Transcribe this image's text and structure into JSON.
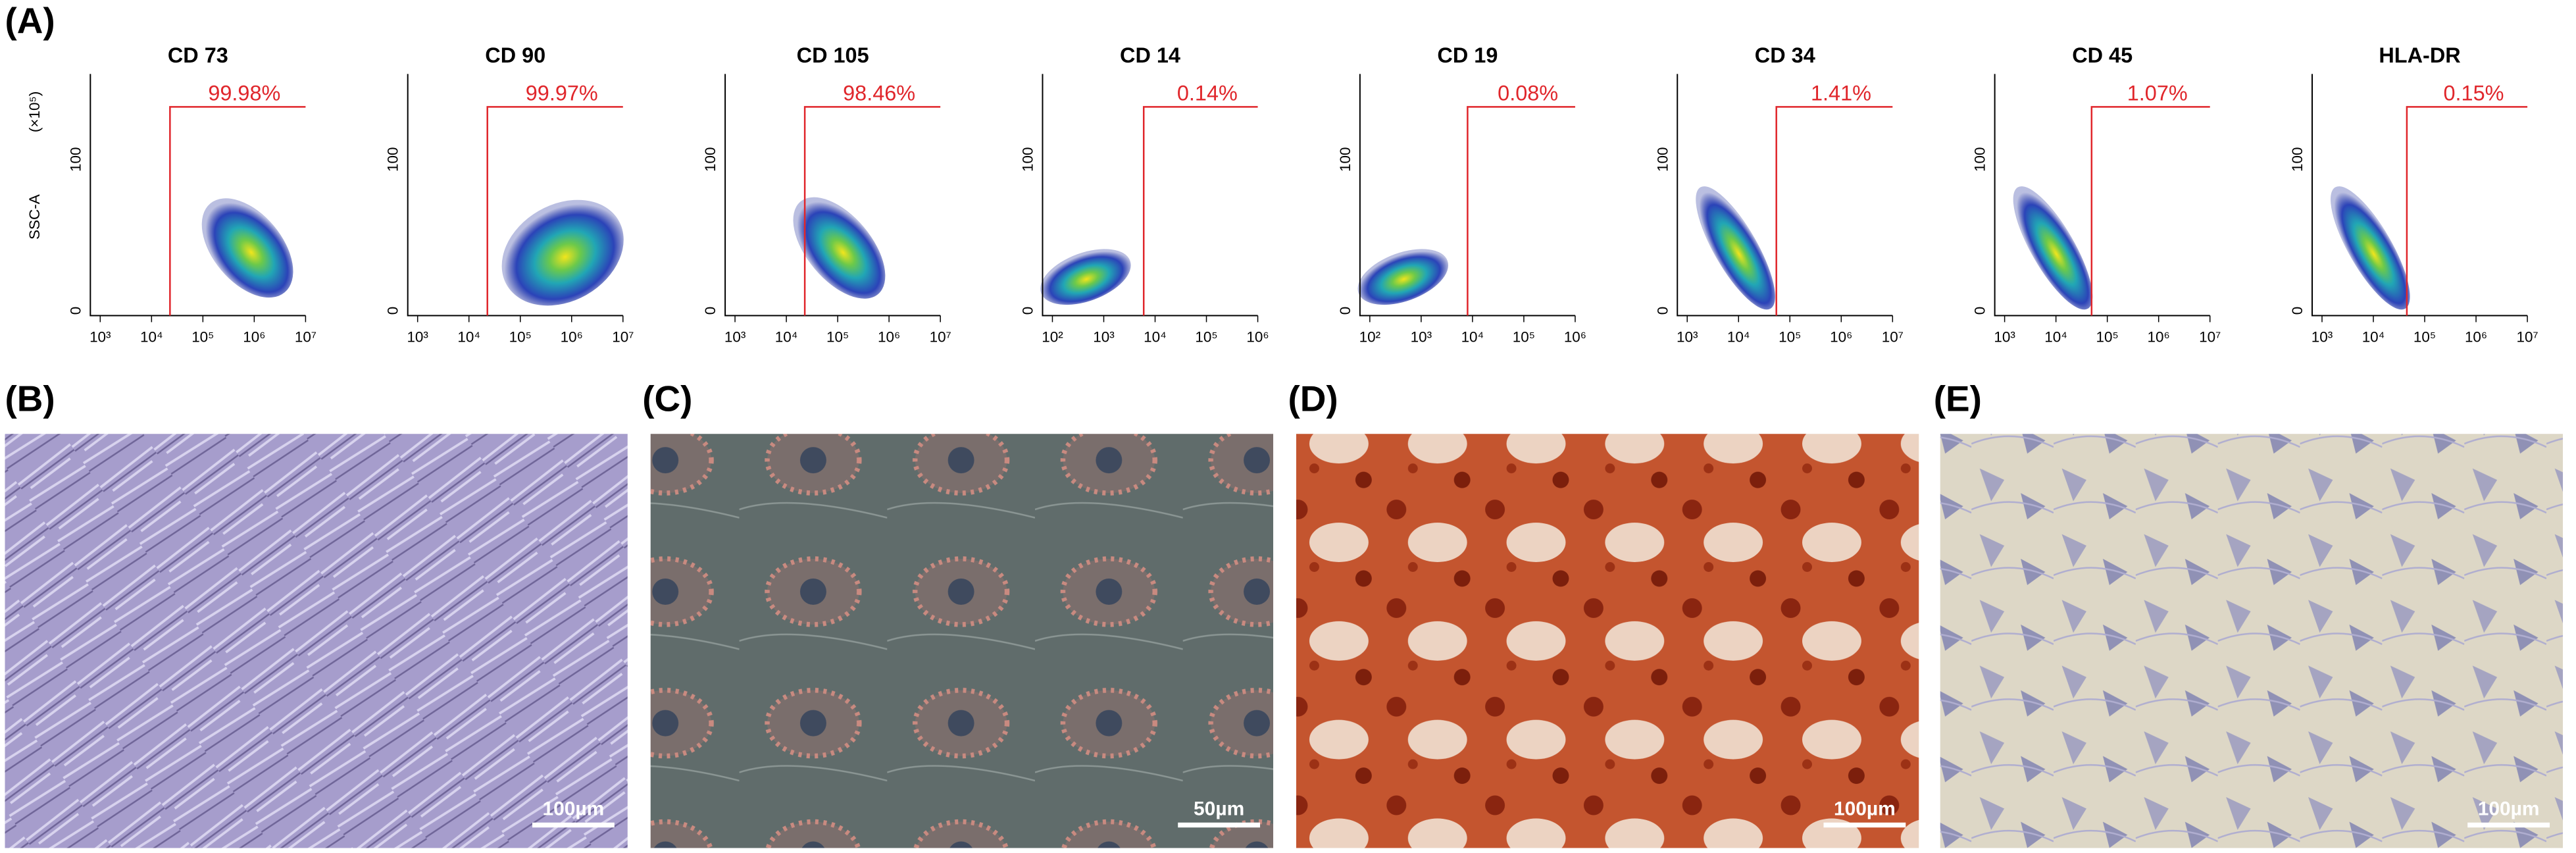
{
  "panels": {
    "A": {
      "label": "(A)",
      "y_axis_label": "SSC-A",
      "y_axis_unit": "(×10⁵)",
      "plots": [
        {
          "title": "CD 73",
          "gate_percent": "99.98%",
          "yticks": [
            "0",
            "100"
          ],
          "xticks": [
            "10³",
            "10⁴",
            "10⁵",
            "10⁶",
            "10⁷"
          ]
        },
        {
          "title": "CD 90",
          "gate_percent": "99.97%",
          "yticks": [
            "0",
            "100"
          ],
          "xticks": [
            "10³",
            "10⁴",
            "10⁵",
            "10⁶",
            "10⁷"
          ]
        },
        {
          "title": "CD 105",
          "gate_percent": "98.46%",
          "yticks": [
            "0",
            "100"
          ],
          "xticks": [
            "10³",
            "10⁴",
            "10⁵",
            "10⁶",
            "10⁷"
          ]
        },
        {
          "title": "CD 14",
          "gate_percent": "0.14%",
          "yticks": [
            "0",
            "100"
          ],
          "xticks": [
            "10²",
            "10³",
            "10⁴",
            "10⁵",
            "10⁶"
          ]
        },
        {
          "title": "CD 19",
          "gate_percent": "0.08%",
          "yticks": [
            "0",
            "100"
          ],
          "xticks": [
            "10²",
            "10³",
            "10⁴",
            "10⁵",
            "10⁶"
          ]
        },
        {
          "title": "CD 34",
          "gate_percent": "1.41%",
          "yticks": [
            "0",
            "100"
          ],
          "xticks": [
            "10³",
            "10⁴",
            "10⁵",
            "10⁶",
            "10⁷"
          ]
        },
        {
          "title": "CD 45",
          "gate_percent": "1.07%",
          "yticks": [
            "0",
            "100"
          ],
          "xticks": [
            "10³",
            "10⁴",
            "10⁵",
            "10⁶",
            "10⁷"
          ]
        },
        {
          "title": "HLA-DR",
          "gate_percent": "0.15%",
          "yticks": [
            "0",
            "100"
          ],
          "xticks": [
            "10³",
            "10⁴",
            "10⁵",
            "10⁶",
            "10⁷"
          ]
        }
      ]
    },
    "B": {
      "label": "(B)",
      "scale_bar": "100µm"
    },
    "C": {
      "label": "(C)",
      "scale_bar": "50µm"
    },
    "D": {
      "label": "(D)",
      "scale_bar": "100µm"
    },
    "E": {
      "label": "(E)",
      "scale_bar": "100µm"
    }
  }
}
